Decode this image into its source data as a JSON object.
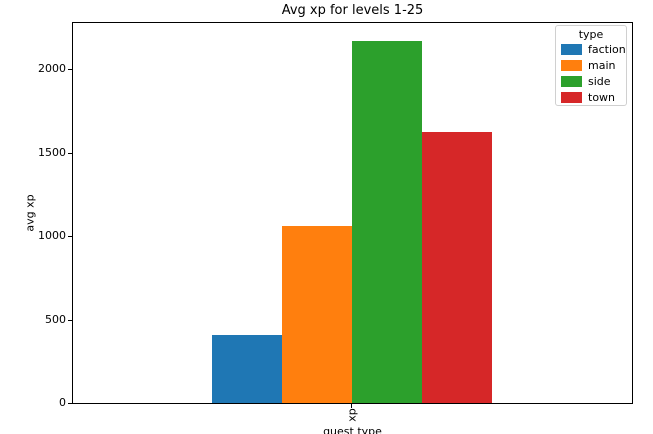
{
  "figure": {
    "background": "#ffffff",
    "spine_color": "#000000"
  },
  "chart_data": {
    "type": "bar",
    "title": "Avg xp for levels 1-25",
    "xlabel": "quest type",
    "ylabel": "avg xp",
    "categories": [
      "xp"
    ],
    "series": [
      {
        "name": "faction",
        "values": [
          410
        ],
        "color": "#1f77b4"
      },
      {
        "name": "main",
        "values": [
          1060
        ],
        "color": "#ff7f0e"
      },
      {
        "name": "side",
        "values": [
          2170
        ],
        "color": "#2ca02c"
      },
      {
        "name": "town",
        "values": [
          1627
        ],
        "color": "#d62728"
      }
    ],
    "legend": {
      "title": "type",
      "entries": [
        "faction",
        "main",
        "side",
        "town"
      ],
      "position": "upper right"
    },
    "ylim": [
      0,
      2278
    ],
    "yticks": [
      0,
      500,
      1000,
      1500,
      2000
    ],
    "xtick_rotation": 90,
    "grid": false
  }
}
